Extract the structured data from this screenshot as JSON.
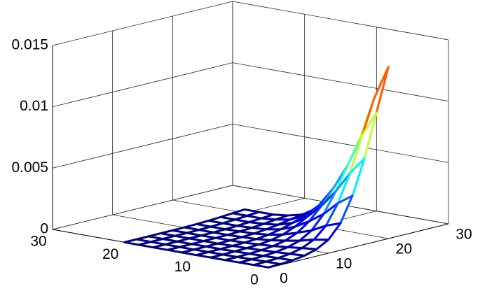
{
  "chart_data": {
    "type": "mesh",
    "x": [
      0,
      2,
      4,
      6,
      8,
      10,
      12,
      14,
      16,
      18,
      20
    ],
    "y": [
      0,
      2,
      4,
      6,
      8,
      10,
      12,
      14,
      16,
      18,
      20
    ],
    "z": [
      [
        4e-05,
        7e-05,
        0.00014,
        0.00028,
        0.00056,
        0.0011,
        0.0022,
        0.0042,
        0.007,
        0.0105,
        0.014
      ],
      [
        3e-05,
        6e-05,
        0.00011,
        0.00022,
        0.00045,
        0.0009,
        0.0018,
        0.0034,
        0.0056,
        0.0084,
        0.0112
      ],
      [
        2e-05,
        4e-05,
        8e-05,
        0.00015,
        0.00031,
        0.0006,
        0.0012,
        0.0023,
        0.0039,
        0.0058,
        0.0077
      ],
      [
        1e-05,
        2e-05,
        5e-05,
        0.0001,
        0.0002,
        0.0004,
        0.0008,
        0.0015,
        0.0025,
        0.0037,
        0.0049
      ],
      [
        1e-05,
        1e-05,
        3e-05,
        6e-05,
        0.00011,
        0.00022,
        0.00045,
        0.00084,
        0.0014,
        0.0021,
        0.0028
      ],
      [
        0,
        1e-05,
        1e-05,
        3e-05,
        6e-05,
        0.00011,
        0.00022,
        0.00042,
        0.0007,
        0.00105,
        0.0014
      ],
      [
        0,
        0,
        1e-05,
        1e-05,
        3e-05,
        6e-05,
        0.00011,
        0.00021,
        0.00035,
        0.00053,
        0.0007
      ],
      [
        0,
        0,
        0,
        1e-05,
        2e-05,
        3e-05,
        7e-05,
        0.00013,
        0.00021,
        0.00032,
        0.00042
      ],
      [
        0,
        0,
        0,
        1e-05,
        1e-05,
        2e-05,
        4e-05,
        8e-05,
        0.00014,
        0.00021,
        0.00028
      ],
      [
        0,
        0,
        0,
        1e-05,
        1e-05,
        2e-05,
        4e-05,
        8e-05,
        0.00014,
        0.00021,
        0.00028
      ],
      [
        0,
        0,
        0,
        1e-05,
        1e-05,
        2e-05,
        4e-05,
        8e-05,
        0.00014,
        0.00021,
        0.00028
      ]
    ],
    "xlim": [
      0,
      30
    ],
    "ylim": [
      0,
      30
    ],
    "zlim": [
      0,
      0.015
    ],
    "xticks": [
      0,
      10,
      20,
      30
    ],
    "yticks": [
      0,
      10,
      20,
      30
    ],
    "zticks": [
      0,
      0.005,
      0.01,
      0.015
    ],
    "grid": true,
    "colormap": "jet"
  }
}
